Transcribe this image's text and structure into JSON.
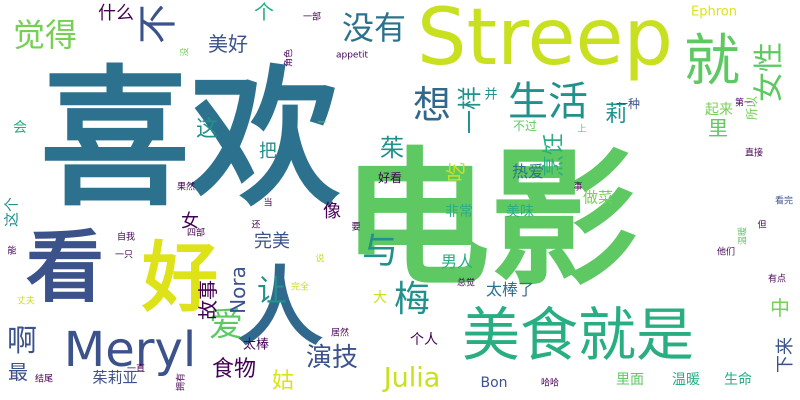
{
  "word_cloud": {
    "colors": {
      "background": "#ffffff",
      "dark_purple": "#440154",
      "indigo": "#3b528b",
      "teal_blue": "#2c728e",
      "teal": "#21918c",
      "green_teal": "#28ae80",
      "green": "#5ec962",
      "yellow_green": "#addc30",
      "yellow": "#dde318"
    },
    "words": [
      {
        "text": "喜欢",
        "weight": 1.0,
        "color": "#2c728e",
        "vertical": false
      },
      {
        "text": "电影",
        "weight": 0.98,
        "color": "#5ec962",
        "vertical": false
      },
      {
        "text": "Streep",
        "weight": 0.6,
        "color": "#c8e020",
        "vertical": false
      },
      {
        "text": "好",
        "weight": 0.55,
        "color": "#dde318",
        "vertical": false
      },
      {
        "text": "人",
        "weight": 0.58,
        "color": "#31688e",
        "vertical": false
      },
      {
        "text": "看",
        "weight": 0.55,
        "color": "#3b528b",
        "vertical": false
      },
      {
        "text": "美食就是",
        "weight": 0.45,
        "color": "#28ae80",
        "vertical": false
      },
      {
        "text": "Meryl",
        "weight": 0.35,
        "color": "#3b528b",
        "vertical": false
      },
      {
        "text": "就",
        "weight": 0.35,
        "color": "#5ec962",
        "vertical": false
      },
      {
        "text": "生活",
        "weight": 0.3,
        "color": "#21918c",
        "vertical": false
      },
      {
        "text": "没有",
        "weight": 0.22,
        "color": "#2c728e",
        "vertical": false
      },
      {
        "text": "不",
        "weight": 0.25,
        "color": "#3b528b",
        "vertical": true
      },
      {
        "text": "觉得",
        "weight": 0.22,
        "color": "#75d054",
        "vertical": false
      },
      {
        "text": "想",
        "weight": 0.25,
        "color": "#31688e",
        "vertical": false
      },
      {
        "text": "与",
        "weight": 0.25,
        "color": "#21918c",
        "vertical": false
      },
      {
        "text": "梅",
        "weight": 0.25,
        "color": "#21918c",
        "vertical": false
      },
      {
        "text": "爱",
        "weight": 0.22,
        "color": "#5ec962",
        "vertical": false
      },
      {
        "text": "让",
        "weight": 0.22,
        "color": "#21918c",
        "vertical": false
      },
      {
        "text": "啊",
        "weight": 0.2,
        "color": "#3b528b",
        "vertical": false
      },
      {
        "text": "女性",
        "weight": 0.2,
        "color": "#5ec962",
        "vertical": true
      },
      {
        "text": "Julia",
        "weight": 0.17,
        "color": "#c8e020",
        "vertical": false
      },
      {
        "text": "演技",
        "weight": 0.17,
        "color": "#3b528b",
        "vertical": false
      },
      {
        "text": "食物",
        "weight": 0.15,
        "color": "#440154",
        "vertical": false
      },
      {
        "text": "姑",
        "weight": 0.15,
        "color": "#dde318",
        "vertical": false
      },
      {
        "text": "茱",
        "weight": 0.15,
        "color": "#21918c",
        "vertical": false
      },
      {
        "text": "一样",
        "weight": 0.15,
        "color": "#21918c",
        "vertical": true
      },
      {
        "text": "这",
        "weight": 0.13,
        "color": "#21918c",
        "vertical": false
      },
      {
        "text": "烹饪",
        "weight": 0.12,
        "color": "#28ae80",
        "vertical": true
      },
      {
        "text": "莉",
        "weight": 0.13,
        "color": "#21918c",
        "vertical": false
      },
      {
        "text": "美好",
        "weight": 0.12,
        "color": "#3b528b",
        "vertical": false
      },
      {
        "text": "个",
        "weight": 0.12,
        "color": "#28ae80",
        "vertical": false
      },
      {
        "text": "故事",
        "weight": 0.12,
        "color": "#440154",
        "vertical": true
      },
      {
        "text": "Nora",
        "weight": 0.11,
        "color": "#3b528b",
        "vertical": true
      },
      {
        "text": "最",
        "weight": 0.12,
        "color": "#3b528b",
        "vertical": false
      },
      {
        "text": "吃",
        "weight": 0.1,
        "color": "#c8e020",
        "vertical": true
      },
      {
        "text": "里",
        "weight": 0.1,
        "color": "#5ec962",
        "vertical": false
      },
      {
        "text": "中",
        "weight": 0.1,
        "color": "#75d054",
        "vertical": false
      },
      {
        "text": "下来",
        "weight": 0.09,
        "color": "#3b528b",
        "vertical": true
      },
      {
        "text": "什么",
        "weight": 0.09,
        "color": "#440154",
        "vertical": false
      },
      {
        "text": "把",
        "weight": 0.09,
        "color": "#21918c",
        "vertical": false
      },
      {
        "text": "女",
        "weight": 0.09,
        "color": "#440154",
        "vertical": false
      },
      {
        "text": "像",
        "weight": 0.09,
        "color": "#440154",
        "vertical": false
      },
      {
        "text": "完美",
        "weight": 0.09,
        "color": "#3b528b",
        "vertical": false
      },
      {
        "text": "太棒了",
        "weight": 0.08,
        "color": "#2c728e",
        "vertical": false
      },
      {
        "text": "男人",
        "weight": 0.08,
        "color": "#28ae80",
        "vertical": false
      },
      {
        "text": "热爱",
        "weight": 0.08,
        "color": "#2c728e",
        "vertical": false
      },
      {
        "text": "非常",
        "weight": 0.07,
        "color": "#28ae80",
        "vertical": false
      },
      {
        "text": "美味",
        "weight": 0.07,
        "color": "#28ae80",
        "vertical": false
      },
      {
        "text": "做菜",
        "weight": 0.07,
        "color": "#75d054",
        "vertical": false
      },
      {
        "text": "起来",
        "weight": 0.07,
        "color": "#75d054",
        "vertical": false
      },
      {
        "text": "茱莉亚",
        "weight": 0.07,
        "color": "#3b528b",
        "vertical": false
      },
      {
        "text": "个人",
        "weight": 0.07,
        "color": "#440154",
        "vertical": false
      },
      {
        "text": "大",
        "weight": 0.06,
        "color": "#c8e020",
        "vertical": false
      },
      {
        "text": "太棒",
        "weight": 0.06,
        "color": "#440154",
        "vertical": false
      },
      {
        "text": "里面",
        "weight": 0.07,
        "color": "#5ec962",
        "vertical": false
      },
      {
        "text": "温暖",
        "weight": 0.07,
        "color": "#28ae80",
        "vertical": false
      },
      {
        "text": "生命",
        "weight": 0.07,
        "color": "#28ae80",
        "vertical": false
      },
      {
        "text": "Bon",
        "weight": 0.07,
        "color": "#3b528b",
        "vertical": false
      },
      {
        "text": "Ephron",
        "weight": 0.06,
        "color": "#dde318",
        "vertical": false
      },
      {
        "text": "这个",
        "weight": 0.07,
        "color": "#21918c",
        "vertical": true
      },
      {
        "text": "会",
        "weight": 0.07,
        "color": "#28ae80",
        "vertical": false
      },
      {
        "text": "好看",
        "weight": 0.06,
        "color": "#440154",
        "vertical": false
      },
      {
        "text": "一种",
        "weight": 0.06,
        "color": "#3b528b",
        "vertical": false
      },
      {
        "text": "不过",
        "weight": 0.06,
        "color": "#5ec962",
        "vertical": false
      },
      {
        "text": "并",
        "weight": 0.06,
        "color": "#21918c",
        "vertical": false
      },
      {
        "text": "所以",
        "weight": 0.05,
        "color": "#75d054",
        "vertical": true
      },
      {
        "text": "第一",
        "weight": 0.04,
        "color": "#440154",
        "vertical": false
      },
      {
        "text": "直接",
        "weight": 0.04,
        "color": "#440154",
        "vertical": false
      },
      {
        "text": "有点",
        "weight": 0.04,
        "color": "#440154",
        "vertical": false
      },
      {
        "text": "他们",
        "weight": 0.04,
        "color": "#440154",
        "vertical": false
      },
      {
        "text": "看完",
        "weight": 0.04,
        "color": "#3b528b",
        "vertical": false
      },
      {
        "text": "但",
        "weight": 0.04,
        "color": "#440154",
        "vertical": false
      },
      {
        "text": "appetit",
        "weight": 0.04,
        "color": "#440154",
        "vertical": false
      },
      {
        "text": "一部",
        "weight": 0.04,
        "color": "#440154",
        "vertical": false
      },
      {
        "text": "角色",
        "weight": 0.04,
        "color": "#440154",
        "vertical": true
      },
      {
        "text": "没",
        "weight": 0.04,
        "color": "#75d054",
        "vertical": true
      },
      {
        "text": "上",
        "weight": 0.04,
        "color": "#5ec962",
        "vertical": false
      },
      {
        "text": "事",
        "weight": 0.04,
        "color": "#440154",
        "vertical": false
      },
      {
        "text": "果然",
        "weight": 0.04,
        "color": "#440154",
        "vertical": false
      },
      {
        "text": "自我",
        "weight": 0.04,
        "color": "#440154",
        "vertical": false
      },
      {
        "text": "当",
        "weight": 0.04,
        "color": "#440154",
        "vertical": false
      },
      {
        "text": "还",
        "weight": 0.04,
        "color": "#440154",
        "vertical": false
      },
      {
        "text": "要",
        "weight": 0.04,
        "color": "#440154",
        "vertical": false
      },
      {
        "text": "说",
        "weight": 0.04,
        "color": "#c8e020",
        "vertical": false
      },
      {
        "text": "四部",
        "weight": 0.04,
        "color": "#440154",
        "vertical": false
      },
      {
        "text": "一只",
        "weight": 0.04,
        "color": "#440154",
        "vertical": false
      },
      {
        "text": "完全",
        "weight": 0.04,
        "color": "#c8e020",
        "vertical": false
      },
      {
        "text": "总觉",
        "weight": 0.04,
        "color": "#440154",
        "vertical": false
      },
      {
        "text": "居然",
        "weight": 0.04,
        "color": "#440154",
        "vertical": false
      },
      {
        "text": "哈哈",
        "weight": 0.04,
        "color": "#440154",
        "vertical": false
      },
      {
        "text": "一直",
        "weight": 0.04,
        "color": "#440154",
        "vertical": false
      },
      {
        "text": "结尾",
        "weight": 0.04,
        "color": "#440154",
        "vertical": false
      },
      {
        "text": "丈夫",
        "weight": 0.04,
        "color": "#c8e020",
        "vertical": false
      },
      {
        "text": "能",
        "weight": 0.04,
        "color": "#440154",
        "vertical": false
      },
      {
        "text": "温暖",
        "weight": 0.04,
        "color": "#5ec962",
        "vertical": true
      },
      {
        "text": "一",
        "weight": 0.04,
        "color": "#5ec962",
        "vertical": false
      },
      {
        "text": "拥有",
        "weight": 0.04,
        "color": "#440154",
        "vertical": true
      }
    ]
  }
}
